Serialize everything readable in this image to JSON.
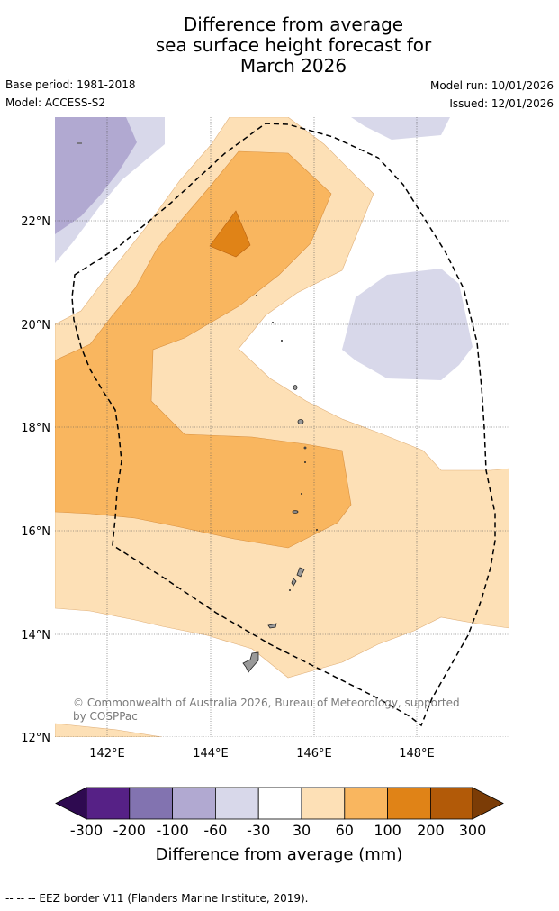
{
  "title": {
    "line1": "Difference from average",
    "line2": "sea surface height forecast for",
    "line3": "March 2026"
  },
  "meta": {
    "base_period": "Base period: 1981-2018",
    "model": "Model: ACCESS-S2",
    "model_run": "Model run: 10/01/2026",
    "issued": "Issued: 12/01/2026"
  },
  "map": {
    "lat_labels": [
      "22°N",
      "20°N",
      "18°N",
      "16°N",
      "14°N",
      "12°N"
    ],
    "lon_labels": [
      "142°E",
      "144°E",
      "146°E",
      "148°E"
    ],
    "copyright": "© Commonwealth of Australia 2026, Bureau of Meteorology, supported by COSPPac",
    "colors": {
      "neg_60_30": "#d8d8ea",
      "neg_100_60": "#b1a9d1",
      "pos_30_60": "#fde0b6",
      "pos_60_100": "#f9b65f",
      "pos_100_200": "#e08317",
      "land": "#999999"
    }
  },
  "colorbar": {
    "title": "Difference from average (mm)",
    "labels": [
      "-300",
      "-200",
      "-100",
      "-60",
      "-30",
      "30",
      "60",
      "100",
      "200",
      "300"
    ],
    "colors": [
      "#2e0a50",
      "#562186",
      "#8273b0",
      "#b1a9d1",
      "#d8d8ea",
      "#ffffff",
      "#fde0b6",
      "#f9b65f",
      "#e08317",
      "#b25a08",
      "#7b3c06"
    ]
  },
  "footer": "--  --  -- EEZ border V11 (Flanders Marine Institute, 2019)."
}
